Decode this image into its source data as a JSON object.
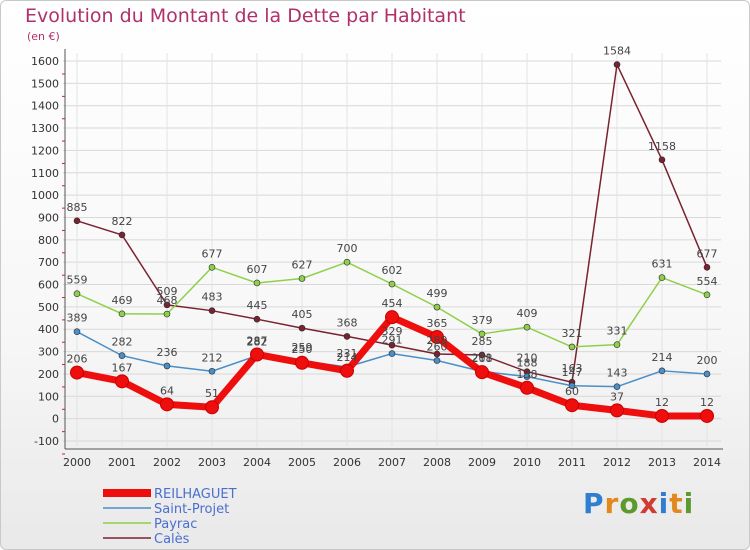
{
  "title": "Evolution du Montant de la Dette par Habitant",
  "subtitle": "(en €)",
  "brand": {
    "letters": [
      "P",
      "r",
      "o",
      "x",
      "i",
      "t",
      "i"
    ],
    "colors": [
      "#2f7fd0",
      "#e2881e",
      "#5c9a2d",
      "#d03b34",
      "#2f7fd0",
      "#e2881e",
      "#5c9a2d"
    ]
  },
  "chart_data": {
    "type": "line",
    "title": "Evolution du Montant de la Dette par Habitant",
    "ylabel": "(en €)",
    "xlabel": "",
    "ylim": [
      -100,
      1600
    ],
    "yticks": [
      "-100",
      "0",
      "100",
      "200",
      "300",
      "400",
      "500",
      "600",
      "700",
      "800",
      "900",
      "1000",
      "1100",
      "1200",
      "1300",
      "1400",
      "1500",
      "1600"
    ],
    "grid": true,
    "legend_position": "bottom-left",
    "categories": [
      "2000",
      "2001",
      "2002",
      "2003",
      "2004",
      "2005",
      "2006",
      "2007",
      "2008",
      "2009",
      "2010",
      "2011",
      "2012",
      "2013",
      "2014"
    ],
    "series": [
      {
        "name": "Calès",
        "color": "#7a2230",
        "values": [
          885,
          822,
          509,
          483,
          445,
          405,
          368,
          329,
          289,
          285,
          210,
          163,
          1584,
          1158,
          677
        ]
      },
      {
        "name": "Payrac",
        "color": "#8fd04a",
        "values": [
          559,
          469,
          468,
          677,
          607,
          627,
          700,
          602,
          499,
          379,
          409,
          321,
          331,
          631,
          554
        ]
      },
      {
        "name": "Saint-Projet",
        "color": "#4a8fc9",
        "values": [
          389,
          282,
          236,
          212,
          282,
          259,
          231,
          291,
          260,
          211,
          188,
          147,
          143,
          214,
          200
        ]
      },
      {
        "name": "REILHAGUET",
        "color": "#ee0e0e",
        "values": [
          206,
          167,
          64,
          51,
          287,
          250,
          214,
          454,
          365,
          208,
          138,
          60,
          37,
          12,
          12
        ]
      }
    ]
  }
}
